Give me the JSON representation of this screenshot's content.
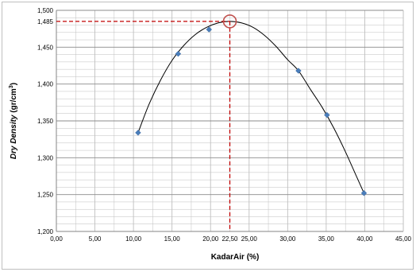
{
  "chart_data": {
    "type": "scatter",
    "xlabel": "KadarAir (%)",
    "ylabel_parts": {
      "italic": "Dry Density",
      "plain": " (gr/cm",
      "sup": "3",
      "close": ")"
    },
    "xlim": [
      0,
      45
    ],
    "ylim": [
      1.2,
      1.5
    ],
    "x_ticks": [
      "0,00",
      "5,00",
      "10,00",
      "15,00",
      "20,00",
      "25,00",
      "30,00",
      "35,00",
      "40,00",
      "45,00"
    ],
    "y_ticks": [
      "1,200",
      "1,250",
      "1,300",
      "1,350",
      "1,400",
      "1,450",
      "1,500"
    ],
    "extra_x_tick": {
      "value": 22.5,
      "label": "22,50"
    },
    "extra_y_tick": {
      "value": 1.485,
      "label": "1,485"
    },
    "grid": true,
    "points": [
      {
        "x": 10.6,
        "y": 1.334
      },
      {
        "x": 15.8,
        "y": 1.441
      },
      {
        "x": 19.8,
        "y": 1.474
      },
      {
        "x": 31.4,
        "y": 1.418
      },
      {
        "x": 35.1,
        "y": 1.358
      },
      {
        "x": 39.9,
        "y": 1.252
      }
    ],
    "curve": [
      {
        "x": 10.6,
        "y": 1.334
      },
      {
        "x": 12.0,
        "y": 1.372
      },
      {
        "x": 13.5,
        "y": 1.405
      },
      {
        "x": 15.0,
        "y": 1.432
      },
      {
        "x": 16.5,
        "y": 1.452
      },
      {
        "x": 18.0,
        "y": 1.467
      },
      {
        "x": 19.5,
        "y": 1.477
      },
      {
        "x": 21.0,
        "y": 1.483
      },
      {
        "x": 22.5,
        "y": 1.485
      },
      {
        "x": 24.0,
        "y": 1.483
      },
      {
        "x": 25.5,
        "y": 1.477
      },
      {
        "x": 27.0,
        "y": 1.466
      },
      {
        "x": 28.5,
        "y": 1.451
      },
      {
        "x": 30.0,
        "y": 1.433
      },
      {
        "x": 31.4,
        "y": 1.418
      },
      {
        "x": 33.0,
        "y": 1.392
      },
      {
        "x": 34.5,
        "y": 1.368
      },
      {
        "x": 36.0,
        "y": 1.34
      },
      {
        "x": 37.5,
        "y": 1.308
      },
      {
        "x": 39.0,
        "y": 1.273
      },
      {
        "x": 39.9,
        "y": 1.252
      }
    ],
    "optimum": {
      "x": 22.5,
      "y": 1.485
    },
    "colors": {
      "marker": "#4a7ebb",
      "curve": "#000000",
      "guide": "#c00000",
      "grid": "#bfbfbf",
      "axis": "#868686"
    }
  }
}
